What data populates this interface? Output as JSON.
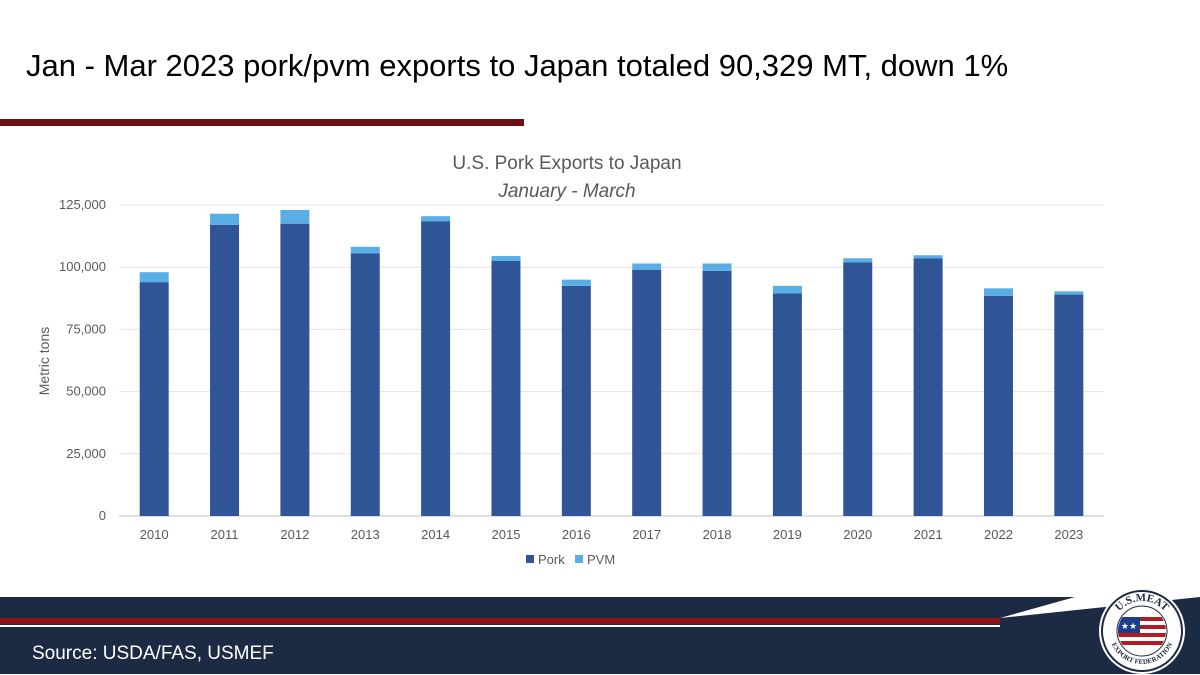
{
  "slide": {
    "title": "Jan - Mar 2023 pork/pvm exports to Japan totaled 90,329 MT, down 1%",
    "source": "Source: USDA/FAS, USMEF"
  },
  "logo": {
    "top_text": "U.S.MEAT",
    "bottom_text": "EXPORT FEDERATION"
  },
  "colors": {
    "pork": "#2f5597",
    "pvm": "#5aaee6",
    "title_rule": "#6b1014",
    "footer_navy": "#1d2a44",
    "footer_red": "#8a1318"
  },
  "chart_data": {
    "type": "bar",
    "stacked": true,
    "title": "U.S. Pork Exports to Japan",
    "subtitle": "January - March",
    "xlabel": "",
    "ylabel": "Metric tons",
    "ylim": [
      0,
      125000
    ],
    "yticks": [
      0,
      25000,
      50000,
      75000,
      100000,
      125000
    ],
    "ytick_labels": [
      "0",
      "25,000",
      "50,000",
      "75,000",
      "100,000",
      "125,000"
    ],
    "grid": true,
    "legend_position": "bottom",
    "categories": [
      "2010",
      "2011",
      "2012",
      "2013",
      "2014",
      "2015",
      "2016",
      "2017",
      "2018",
      "2019",
      "2020",
      "2021",
      "2022",
      "2023"
    ],
    "series": [
      {
        "name": "Pork",
        "values": [
          94000,
          117000,
          117500,
          105500,
          118500,
          102500,
          92500,
          99000,
          98500,
          89500,
          102000,
          103500,
          88500,
          89000
        ]
      },
      {
        "name": "PVM",
        "values": [
          4000,
          4500,
          5500,
          2700,
          2000,
          2000,
          2500,
          2500,
          3000,
          3000,
          1600,
          1300,
          3000,
          1300
        ]
      }
    ]
  }
}
